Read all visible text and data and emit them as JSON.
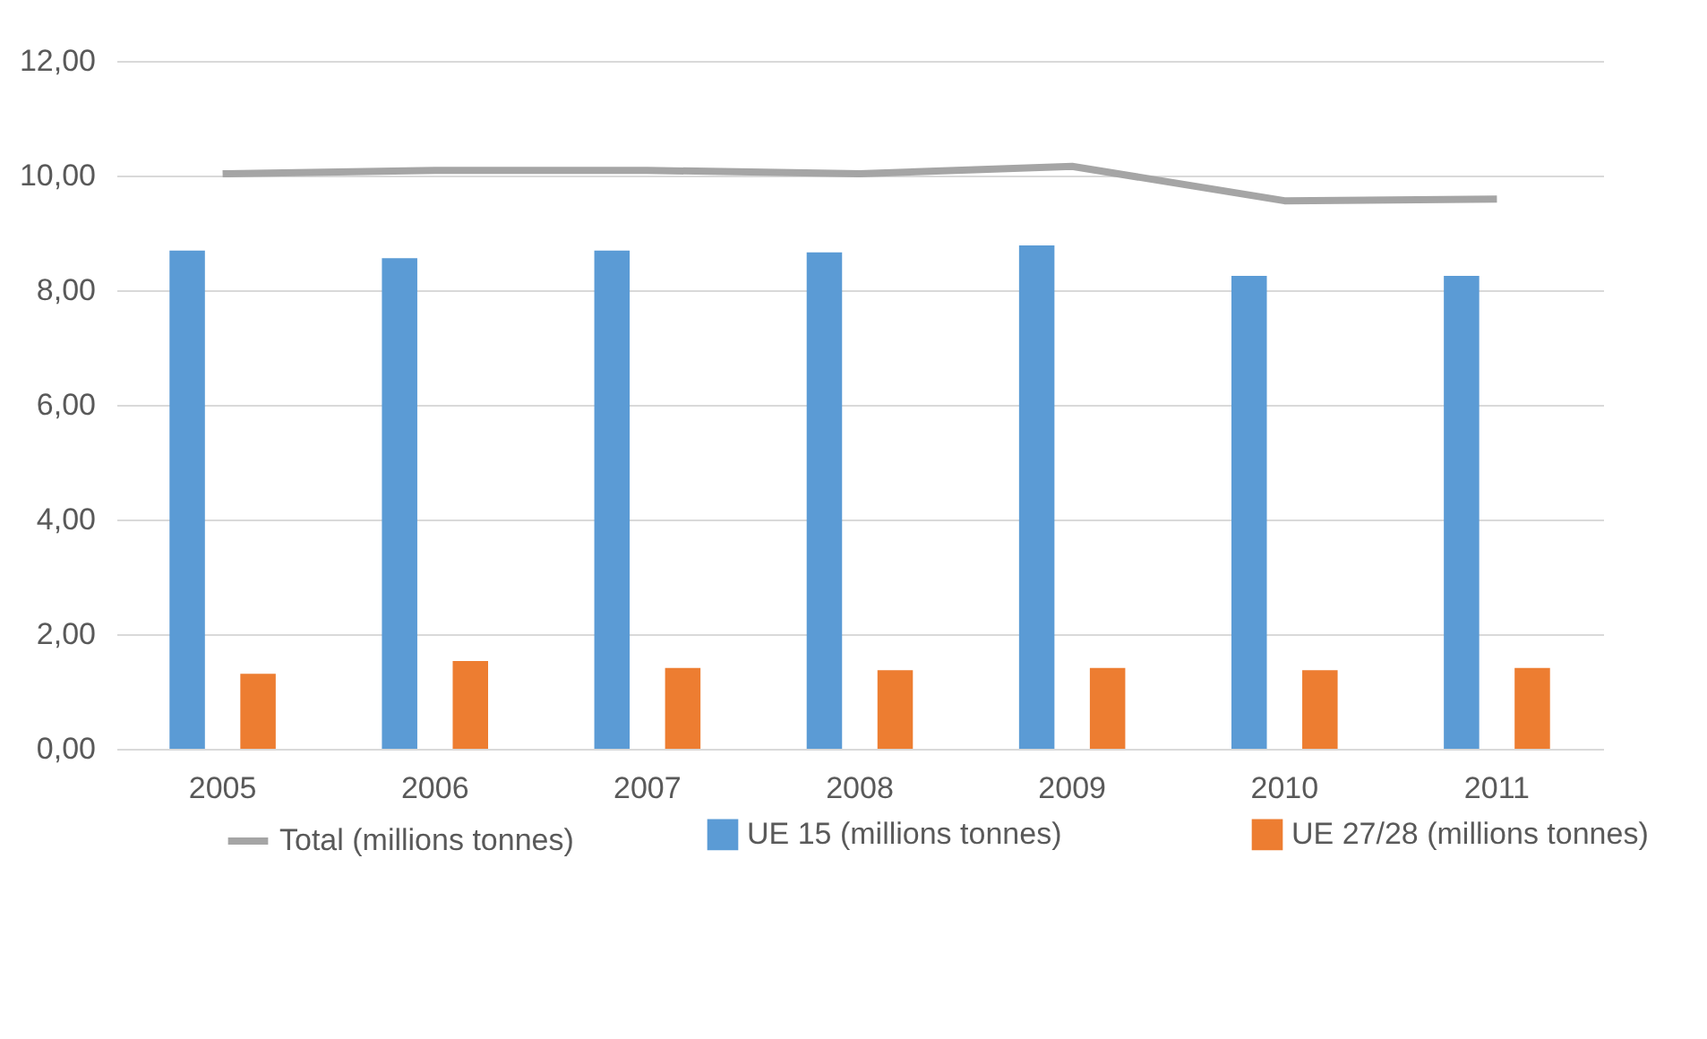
{
  "chart_data": {
    "type": "bar",
    "categories": [
      "2005",
      "2006",
      "2007",
      "2008",
      "2009",
      "2010",
      "2011"
    ],
    "series": [
      {
        "name": "UE 15  (millions tonnes)",
        "color": "#5b9bd5",
        "values": [
          8.69,
          8.56,
          8.69,
          8.66,
          8.78,
          8.25,
          8.25
        ]
      },
      {
        "name": "UE 27/28  (millions tonnes)",
        "color": "#ed7d31",
        "values": [
          1.31,
          1.53,
          1.41,
          1.37,
          1.41,
          1.37,
          1.41
        ]
      },
      {
        "name": "Total  (millions tonnes)",
        "color": "#a5a5a5",
        "type": "line",
        "values": [
          10.03,
          10.09,
          10.09,
          10.03,
          10.16,
          9.56,
          9.59
        ]
      }
    ],
    "ylim": [
      0,
      12
    ],
    "yticks": [
      {
        "value": 0,
        "label": "0,00"
      },
      {
        "value": 2,
        "label": "2,00"
      },
      {
        "value": 4,
        "label": "4,00"
      },
      {
        "value": 6,
        "label": "6,00"
      },
      {
        "value": 8,
        "label": "8,00"
      },
      {
        "value": 10,
        "label": "10,00"
      },
      {
        "value": 12,
        "label": "12,00"
      }
    ],
    "grid": "y",
    "legend": "bottom",
    "marker": "none",
    "line_style": "solid"
  }
}
